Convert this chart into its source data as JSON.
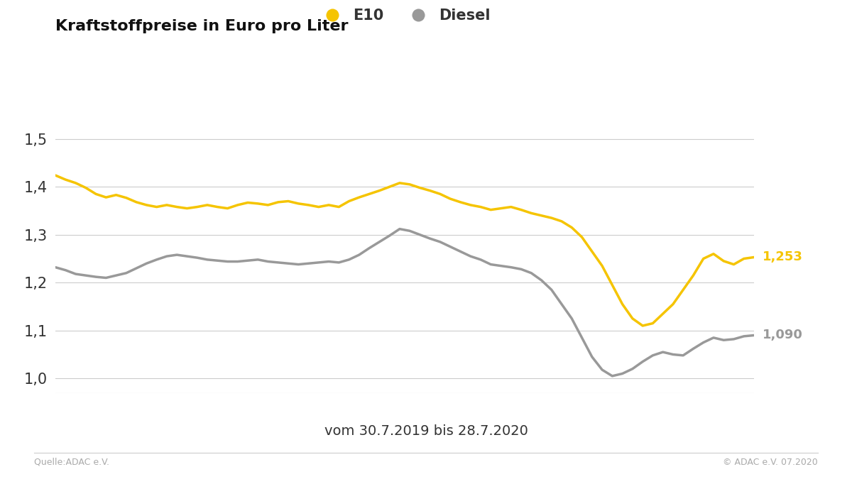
{
  "title": "Kraftstoffpreise in Euro pro Liter",
  "xlabel": "vom 30.7.2019 bis 28.7.2020",
  "e10_color": "#F5C400",
  "diesel_color": "#999999",
  "background_color": "#ffffff",
  "ylim": [
    0.97,
    1.57
  ],
  "yticks": [
    1.0,
    1.1,
    1.2,
    1.3,
    1.4,
    1.5
  ],
  "ytick_labels": [
    "1,0",
    "1,1",
    "1,2",
    "1,3",
    "1,4",
    "1,5"
  ],
  "e10_label": "E10",
  "diesel_label": "Diesel",
  "e10_final_value": "1,253",
  "diesel_final_value": "1,090",
  "source_left": "Quelle:ADAC e.V.",
  "source_right": "© ADAC e.V. 07.2020",
  "e10_data": [
    1.424,
    1.415,
    1.408,
    1.398,
    1.385,
    1.378,
    1.383,
    1.377,
    1.368,
    1.362,
    1.358,
    1.362,
    1.358,
    1.355,
    1.358,
    1.362,
    1.358,
    1.355,
    1.362,
    1.367,
    1.365,
    1.362,
    1.368,
    1.37,
    1.365,
    1.362,
    1.358,
    1.362,
    1.358,
    1.37,
    1.378,
    1.385,
    1.392,
    1.4,
    1.408,
    1.405,
    1.398,
    1.392,
    1.385,
    1.375,
    1.368,
    1.362,
    1.358,
    1.352,
    1.355,
    1.358,
    1.352,
    1.345,
    1.34,
    1.335,
    1.328,
    1.315,
    1.295,
    1.265,
    1.235,
    1.195,
    1.155,
    1.125,
    1.11,
    1.115,
    1.135,
    1.155,
    1.185,
    1.215,
    1.25,
    1.26,
    1.245,
    1.238,
    1.25,
    1.253
  ],
  "diesel_data": [
    1.232,
    1.226,
    1.218,
    1.215,
    1.212,
    1.21,
    1.215,
    1.22,
    1.23,
    1.24,
    1.248,
    1.255,
    1.258,
    1.255,
    1.252,
    1.248,
    1.246,
    1.244,
    1.244,
    1.246,
    1.248,
    1.244,
    1.242,
    1.24,
    1.238,
    1.24,
    1.242,
    1.244,
    1.242,
    1.248,
    1.258,
    1.272,
    1.285,
    1.298,
    1.312,
    1.308,
    1.3,
    1.292,
    1.285,
    1.275,
    1.265,
    1.255,
    1.248,
    1.238,
    1.235,
    1.232,
    1.228,
    1.22,
    1.205,
    1.185,
    1.155,
    1.125,
    1.085,
    1.045,
    1.018,
    1.005,
    1.01,
    1.02,
    1.035,
    1.048,
    1.055,
    1.05,
    1.048,
    1.062,
    1.075,
    1.085,
    1.08,
    1.082,
    1.088,
    1.09
  ]
}
